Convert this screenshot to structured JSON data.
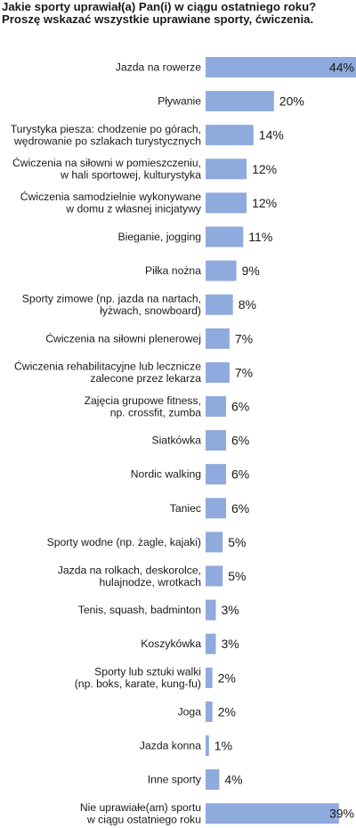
{
  "title_lines": [
    "Jakie sporty uprawiał(a) Pan(i) w ciągu ostatniego roku?",
    "Proszę wskazać wszystkie uprawiane sporty, ćwiczenia."
  ],
  "colors": {
    "bar": "#8faadc",
    "text": "#1a1a1a"
  },
  "chart_data": {
    "type": "bar",
    "orientation": "horizontal",
    "title": "Jakie sporty uprawiał(a) Pan(i) w ciągu ostatniego roku? Proszę wskazać wszystkie uprawiane sporty, ćwiczenia.",
    "xlim": [
      0,
      44
    ],
    "grid": false,
    "categories": [
      [
        "Jazda na rowerze"
      ],
      [
        "Pływanie"
      ],
      [
        "Turystyka piesza: chodzenie po górach,",
        "wędrowanie po szlakach turystycznych"
      ],
      [
        "Ćwiczenia na siłowni w pomieszczeniu,",
        "w hali sportowej, kulturystyka"
      ],
      [
        "Ćwiczenia samodzielnie wykonywane",
        "w domu z własnej inicjatywy"
      ],
      [
        "Bieganie, jogging"
      ],
      [
        "Piłka nożna"
      ],
      [
        "Sporty zimowe (np. jazda na nartach,",
        "łyżwach, snowboard)"
      ],
      [
        "Ćwiczenia na siłowni plenerowej"
      ],
      [
        "Ćwiczenia rehabilitacyjne lub lecznicze",
        "zalecone przez lekarza"
      ],
      [
        "Zajęcia grupowe fitness,",
        "np. crossfit, zumba"
      ],
      [
        "Siatkówka"
      ],
      [
        "Nordic walking"
      ],
      [
        "Taniec"
      ],
      [
        "Sporty wodne (np. żagle, kajaki)"
      ],
      [
        "Jazda na rolkach, deskorolce,",
        "hulajnodze, wrotkach"
      ],
      [
        "Tenis, squash, badminton"
      ],
      [
        "Koszykówka"
      ],
      [
        "Sporty lub sztuki walki",
        "(np. boks, karate, kung-fu)"
      ],
      [
        "Joga"
      ],
      [
        "Jazda konna"
      ],
      [
        "Inne sporty"
      ],
      [
        "Nie uprawiałe(am) sportu",
        "w ciągu ostatniego roku"
      ]
    ],
    "values": [
      44,
      20,
      14,
      12,
      12,
      11,
      9,
      8,
      7,
      7,
      6,
      6,
      6,
      6,
      5,
      5,
      3,
      3,
      2,
      2,
      1,
      4,
      39
    ],
    "value_labels": [
      "44%",
      "20%",
      "14%",
      "12%",
      "12%",
      "11%",
      "9%",
      "8%",
      "7%",
      "7%",
      "6%",
      "6%",
      "6%",
      "6%",
      "5%",
      "5%",
      "3%",
      "3%",
      "2%",
      "2%",
      "1%",
      "4%",
      "39%"
    ]
  }
}
